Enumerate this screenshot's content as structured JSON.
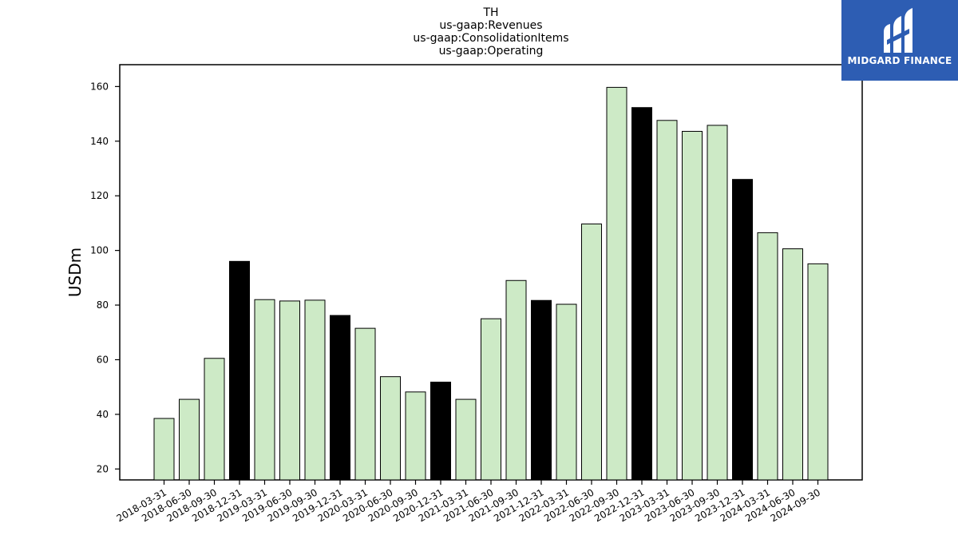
{
  "chart_data": {
    "type": "bar",
    "title_lines": [
      "TH",
      "us-gaap:Revenues",
      "us-gaap:ConsolidationItems",
      "us-gaap:Operating"
    ],
    "ylabel": "USDm",
    "xlabel": "",
    "ylim": [
      16,
      168
    ],
    "yticks": [
      20,
      40,
      60,
      80,
      100,
      120,
      140,
      160
    ],
    "categories": [
      "2018-03-31",
      "2018-06-30",
      "2018-09-30",
      "2018-12-31",
      "2019-03-31",
      "2019-06-30",
      "2019-09-30",
      "2019-12-31",
      "2020-03-31",
      "2020-06-30",
      "2020-09-30",
      "2020-12-31",
      "2021-03-31",
      "2021-06-30",
      "2021-09-30",
      "2021-12-31",
      "2022-03-31",
      "2022-06-30",
      "2022-09-30",
      "2022-12-31",
      "2023-03-31",
      "2023-06-30",
      "2023-09-30",
      "2023-12-31",
      "2024-03-31",
      "2024-06-30",
      "2024-09-30"
    ],
    "values": [
      38.5,
      45.5,
      60.5,
      96.0,
      82.0,
      81.5,
      81.8,
      76.2,
      71.5,
      53.8,
      48.2,
      51.8,
      45.5,
      75.0,
      89.0,
      81.7,
      80.3,
      109.7,
      159.7,
      152.3,
      147.6,
      143.6,
      145.8,
      126.0,
      106.5,
      100.6,
      95.1
    ],
    "colors": {
      "quarter": "#cdeac6",
      "year_end": "#000000",
      "edge": "#000000"
    },
    "grid": false
  },
  "logo": {
    "text": "MIDGARD FINANCE",
    "icon": "midgard-finance-logo-icon"
  }
}
